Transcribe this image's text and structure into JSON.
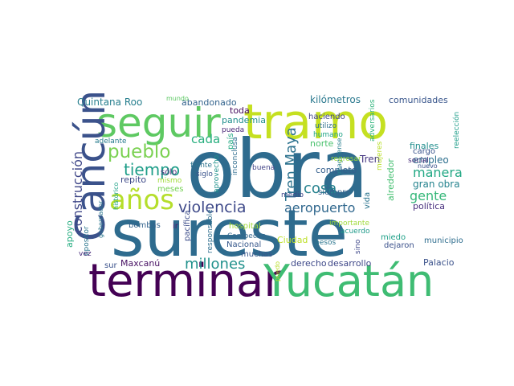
{
  "wordcloud": {
    "background": "#ffffff",
    "words": [
      {
        "text": "obra",
        "color": "#2e6b8e"
      },
      {
        "text": "sureste",
        "color": "#2e6b8e"
      },
      {
        "text": "tramo",
        "color": "#c5e021"
      },
      {
        "text": "terminar",
        "color": "#440154"
      },
      {
        "text": "Yucatán",
        "color": "#3fbc73"
      },
      {
        "text": "seguir",
        "color": "#5ec962"
      },
      {
        "text": "Cancún",
        "color": "#3b528b"
      },
      {
        "text": "años",
        "color": "#b5de2b"
      },
      {
        "text": "pueblo",
        "color": "#7ad151"
      },
      {
        "text": "tiempo",
        "color": "#1f9e89"
      },
      {
        "text": "violencia",
        "color": "#3e4989"
      },
      {
        "text": "millones",
        "color": "#21918c"
      },
      {
        "text": "Tren Maya",
        "color": "#2c728e"
      },
      {
        "text": "cosa",
        "color": "#26828e"
      },
      {
        "text": "aeropuerto",
        "color": "#31688e"
      },
      {
        "text": "manera",
        "color": "#22a884"
      },
      {
        "text": "gente",
        "color": "#35b779"
      },
      {
        "text": "construcción",
        "color": "#3f4788"
      },
      {
        "text": "cada",
        "color": "#29af7f"
      },
      {
        "text": "Quintana Roo",
        "color": "#277f8e"
      },
      {
        "text": "abandonado",
        "color": "#33638d"
      },
      {
        "text": "kilómetros",
        "color": "#2a788e"
      },
      {
        "text": "comunidades",
        "color": "#39568c"
      },
      {
        "text": "toda",
        "color": "#460a5d"
      },
      {
        "text": "pandemia",
        "color": "#218f8d"
      },
      {
        "text": "pueda",
        "color": "#482677"
      },
      {
        "text": "haciendo",
        "color": "#404387"
      },
      {
        "text": "utilizo",
        "color": "#2d708e"
      },
      {
        "text": "humano",
        "color": "#20a486"
      },
      {
        "text": "norte",
        "color": "#4ac16d"
      },
      {
        "text": "adversarios",
        "color": "#2fb47c"
      },
      {
        "text": "cargo",
        "color": "#3a548c"
      },
      {
        "text": "reelección",
        "color": "#1e9d89"
      },
      {
        "text": "finales",
        "color": "#218e8d"
      },
      {
        "text": "empleo",
        "color": "#2d6f8e"
      },
      {
        "text": "social",
        "color": "#472c7a"
      },
      {
        "text": "nuevo",
        "color": "#3b528b"
      },
      {
        "text": "política",
        "color": "#472f7d"
      },
      {
        "text": "gran obra",
        "color": "#25838e"
      },
      {
        "text": "Tren",
        "color": "#453781"
      },
      {
        "text": "completo",
        "color": "#355f8d"
      },
      {
        "text": "imagínense",
        "color": "#277e8e"
      },
      {
        "text": "regresar",
        "color": "#9bd93c"
      },
      {
        "text": "mujeres",
        "color": "#b8de29"
      },
      {
        "text": "alrededor",
        "color": "#44bf70"
      },
      {
        "text": "siempre",
        "color": "#34618d"
      },
      {
        "text": "medio",
        "color": "#3f4889"
      },
      {
        "text": "buena",
        "color": "#414487"
      },
      {
        "text": "frente",
        "color": "#2c738e"
      },
      {
        "text": "siglo",
        "color": "#3a548c"
      },
      {
        "text": "aprovecho",
        "color": "#20928c"
      },
      {
        "text": "país",
        "color": "#23a983"
      },
      {
        "text": "inconclusa",
        "color": "#2f6c8e"
      },
      {
        "text": "mundo",
        "color": "#5cc863"
      },
      {
        "text": "adelante",
        "color": "#287c8e"
      },
      {
        "text": "repito",
        "color": "#3e4a89"
      },
      {
        "text": "mismo",
        "color": "#a0da39"
      },
      {
        "text": "sólo",
        "color": "#482878"
      },
      {
        "text": "meses",
        "color": "#75d054"
      },
      {
        "text": "histórico",
        "color": "#1fa187"
      },
      {
        "text": "gobernador",
        "color": "#2a778e"
      },
      {
        "text": "apoyo",
        "color": "#26ad81"
      },
      {
        "text": "bombas",
        "color": "#33638d"
      },
      {
        "text": "ir",
        "color": "#482173"
      },
      {
        "text": "pacífica",
        "color": "#3d4d8a"
      },
      {
        "text": "responsable",
        "color": "#2e6e8e"
      },
      {
        "text": "hospital",
        "color": "#a2da37"
      },
      {
        "text": "Campeche",
        "color": "#31678e"
      },
      {
        "text": "Nacional",
        "color": "#38598c"
      },
      {
        "text": "muchas",
        "color": "#39568c"
      },
      {
        "text": "Ciudad",
        "color": "#bddf26"
      },
      {
        "text": "opositor",
        "color": "#2a768e"
      },
      {
        "text": "vez",
        "color": "#472a7a"
      },
      {
        "text": "Maxcanú",
        "color": "#471063"
      },
      {
        "text": "sur",
        "color": "#3b528b"
      },
      {
        "text": "derecho",
        "color": "#3e4989"
      },
      {
        "text": "desarrollo",
        "color": "#3f4788"
      },
      {
        "text": "puedo",
        "color": "#bade28"
      },
      {
        "text": "pesos",
        "color": "#2b758e"
      },
      {
        "text": "importante",
        "color": "#9fda3a"
      },
      {
        "text": "acuerdo",
        "color": "#1f9a8a"
      },
      {
        "text": "sino",
        "color": "#3f4889"
      },
      {
        "text": "miedo",
        "color": "#1fa088"
      },
      {
        "text": "dejaron",
        "color": "#3b518b"
      },
      {
        "text": "vida",
        "color": "#2b748e"
      },
      {
        "text": "municipio",
        "color": "#2e6d8e"
      },
      {
        "text": "Palacio",
        "color": "#3b528b"
      }
    ]
  }
}
